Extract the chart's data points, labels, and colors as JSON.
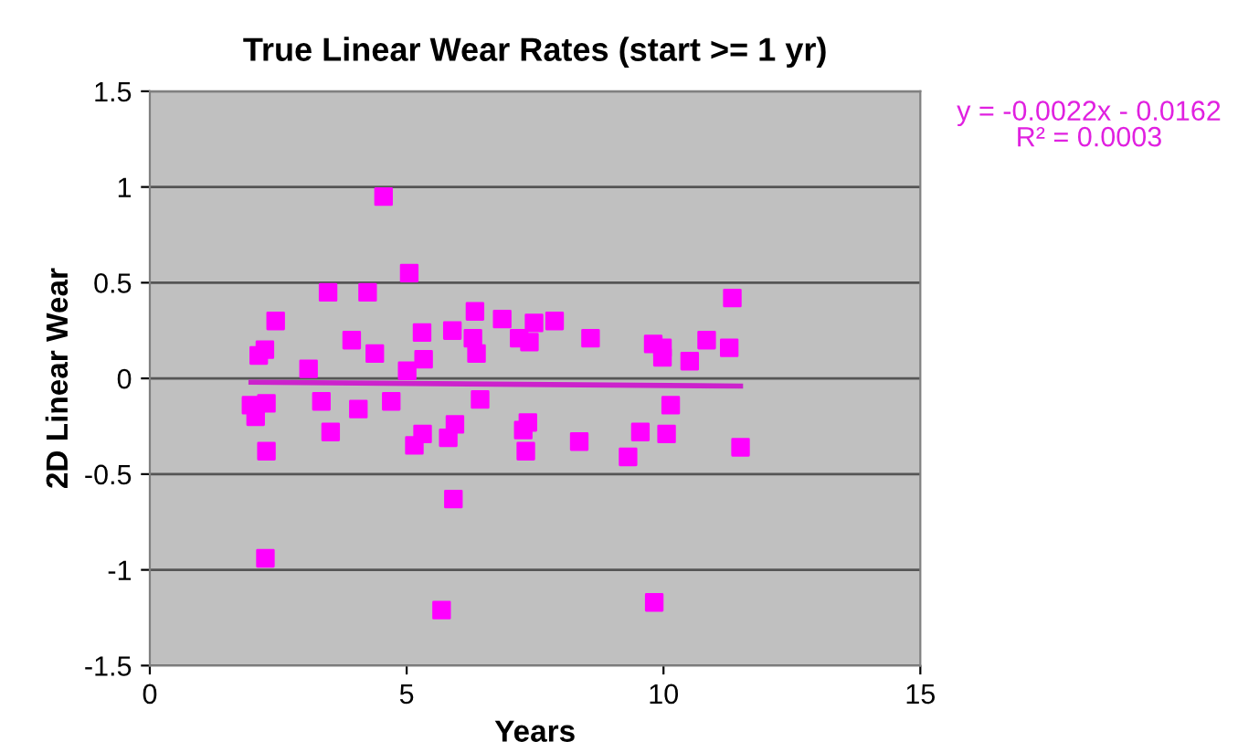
{
  "chart_data": {
    "type": "scatter",
    "title": "True Linear Wear Rates (start >= 1 yr)",
    "xlabel": "Years",
    "ylabel": "2D Linear Wear",
    "annotations": [
      "y = -0.0022x - 0.0162\nR² = 0.0003"
    ],
    "xlim": [
      0,
      15
    ],
    "xticks": [
      0,
      5,
      10,
      15
    ],
    "ylim": [
      -1.5,
      1.5
    ],
    "yticks": [
      -1.5,
      -1,
      -0.5,
      0,
      0.5,
      1,
      1.5
    ],
    "grid": "y",
    "marker": "square",
    "series": [
      {
        "color": "#ff00ff",
        "x": [
          2.12,
          2.24,
          2.45,
          3.09,
          3.47,
          3.87,
          3.93,
          4.24,
          4.38,
          4.55,
          5.05,
          5.01,
          5.17,
          5.3,
          5.33,
          5.89,
          6.29,
          6.33,
          6.36,
          6.86,
          7.19,
          7.39,
          7.48,
          7.88,
          8.58,
          9.8,
          9.98,
          9.98,
          10.51,
          10.84,
          11.28,
          11.34,
          1.97,
          2.06,
          2.27,
          2.27,
          2.25,
          3.34,
          3.52,
          4.06,
          4.7,
          5.15,
          5.31,
          5.68,
          5.81,
          5.94,
          5.91,
          6.43,
          7.27,
          7.36,
          7.32,
          8.36,
          9.31,
          9.55,
          9.82,
          10.06,
          10.14,
          11.5
        ],
        "values": [
          0.12,
          0.15,
          0.3,
          0.05,
          0.45,
          null,
          0.2,
          0.45,
          0.13,
          0.95,
          0.55,
          0.04,
          null,
          0.24,
          0.1,
          0.25,
          0.21,
          0.35,
          0.13,
          0.31,
          0.21,
          0.19,
          0.29,
          0.3,
          0.21,
          0.18,
          0.16,
          0.11,
          0.09,
          0.2,
          0.16,
          0.42,
          -0.14,
          -0.2,
          -0.13,
          -0.38,
          -0.94,
          -0.12,
          -0.28,
          -0.16,
          -0.12,
          -0.35,
          -0.29,
          -1.21,
          -0.31,
          -0.24,
          -0.63,
          -0.11,
          -0.27,
          -0.23,
          -0.38,
          -0.33,
          -0.41,
          -0.28,
          -1.17,
          -0.29,
          -0.14,
          -0.36
        ]
      },
      {
        "type": "line",
        "color": "#cc22cc",
        "marker": "none",
        "x": [
          1.97,
          11.5
        ],
        "values": [
          -0.02,
          -0.04
        ]
      }
    ]
  }
}
